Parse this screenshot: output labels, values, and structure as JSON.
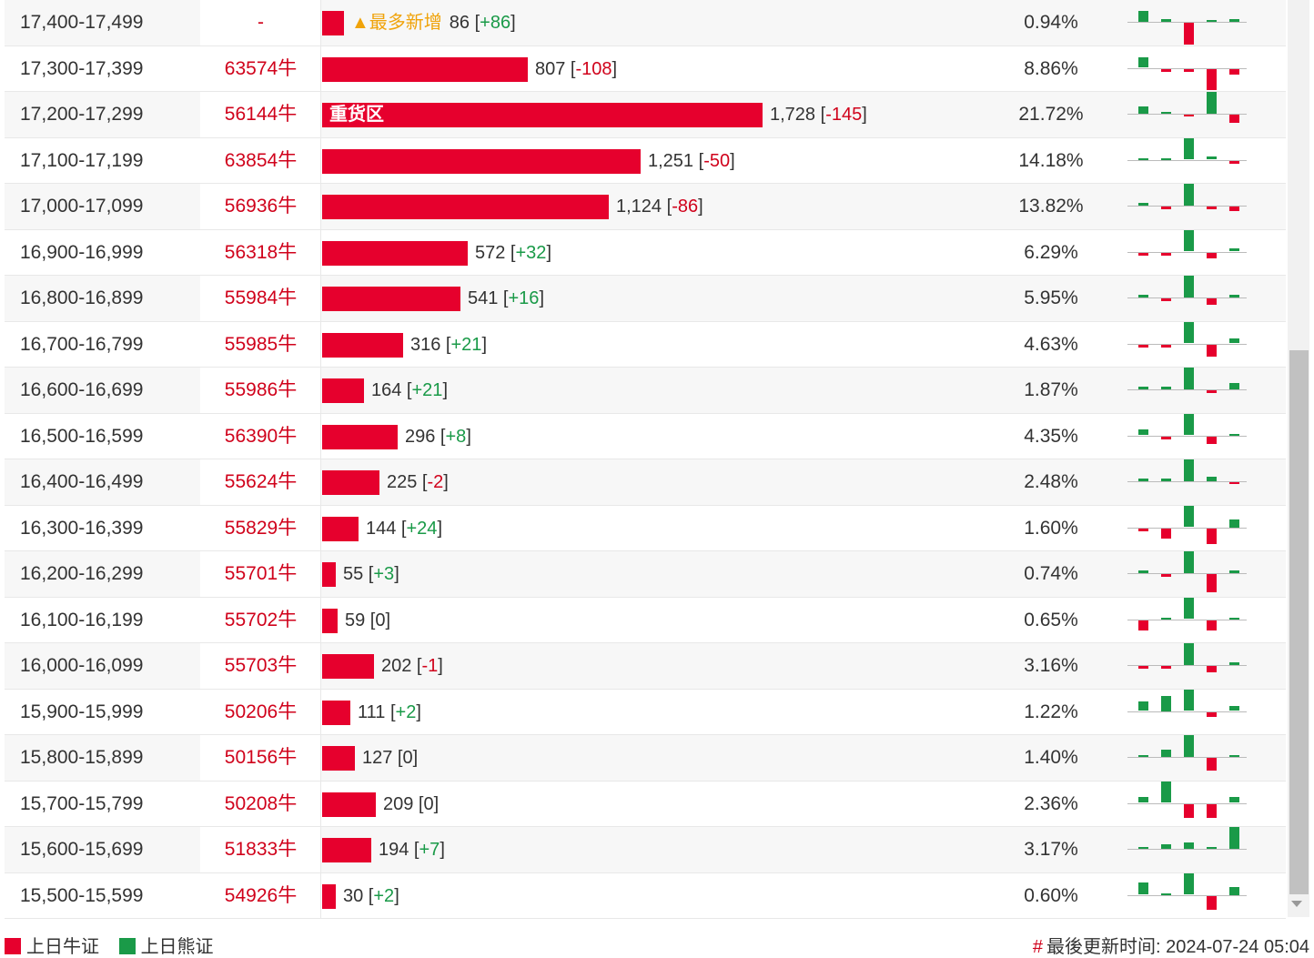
{
  "rows": [
    {
      "range": "17,400-17,499",
      "code": "-",
      "bar": 86,
      "label": "",
      "tag": "▲最多新增",
      "count": "86",
      "delta": "+86",
      "pct": "0.94%",
      "spark": [
        7,
        2,
        -14,
        0,
        2
      ]
    },
    {
      "range": "17,300-17,399",
      "code": "63574牛",
      "bar": 807,
      "label": "",
      "tag": "",
      "count": "807",
      "delta": "-108",
      "pct": "8.86%",
      "spark": [
        7,
        -2,
        -2,
        -14,
        -4
      ]
    },
    {
      "range": "17,200-17,299",
      "code": "56144牛",
      "bar": 1728,
      "label": "重货区",
      "tag": "",
      "count": "1,728",
      "delta": "-145",
      "pct": "21.72%",
      "spark": [
        5,
        1,
        -1,
        14,
        -5
      ]
    },
    {
      "range": "17,100-17,199",
      "code": "63854牛",
      "bar": 1251,
      "label": "",
      "tag": "",
      "count": "1,251",
      "delta": "-50",
      "pct": "14.18%",
      "spark": [
        1,
        0,
        14,
        2,
        -2
      ]
    },
    {
      "range": "17,000-17,099",
      "code": "56936牛",
      "bar": 1124,
      "label": "",
      "tag": "",
      "count": "1,124",
      "delta": "-86",
      "pct": "13.82%",
      "spark": [
        2,
        -2,
        14,
        -2,
        -3
      ]
    },
    {
      "range": "16,900-16,999",
      "code": "56318牛",
      "bar": 572,
      "label": "",
      "tag": "",
      "count": "572",
      "delta": "+32",
      "pct": "6.29%",
      "spark": [
        -2,
        -2,
        14,
        -4,
        2
      ]
    },
    {
      "range": "16,800-16,899",
      "code": "55984牛",
      "bar": 541,
      "label": "",
      "tag": "",
      "count": "541",
      "delta": "+16",
      "pct": "5.95%",
      "spark": [
        2,
        -2,
        14,
        -4,
        2
      ]
    },
    {
      "range": "16,700-16,799",
      "code": "55985牛",
      "bar": 316,
      "label": "",
      "tag": "",
      "count": "316",
      "delta": "+21",
      "pct": "4.63%",
      "spark": [
        -2,
        -2,
        14,
        -8,
        3
      ]
    },
    {
      "range": "16,600-16,699",
      "code": "55986牛",
      "bar": 164,
      "label": "",
      "tag": "",
      "count": "164",
      "delta": "+21",
      "pct": "1.87%",
      "spark": [
        2,
        2,
        14,
        -2,
        4
      ]
    },
    {
      "range": "16,500-16,599",
      "code": "56390牛",
      "bar": 296,
      "label": "",
      "tag": "",
      "count": "296",
      "delta": "+8",
      "pct": "4.35%",
      "spark": [
        4,
        -2,
        14,
        -5,
        1
      ]
    },
    {
      "range": "16,400-16,499",
      "code": "55624牛",
      "bar": 225,
      "label": "",
      "tag": "",
      "count": "225",
      "delta": "-2",
      "pct": "2.48%",
      "spark": [
        2,
        2,
        14,
        3,
        -1
      ]
    },
    {
      "range": "16,300-16,399",
      "code": "55829牛",
      "bar": 144,
      "label": "",
      "tag": "",
      "count": "144",
      "delta": "+24",
      "pct": "1.60%",
      "spark": [
        -2,
        -7,
        14,
        -10,
        5
      ]
    },
    {
      "range": "16,200-16,299",
      "code": "55701牛",
      "bar": 55,
      "label": "",
      "tag": "",
      "count": "55",
      "delta": "+3",
      "pct": "0.74%",
      "spark": [
        2,
        -2,
        14,
        -12,
        2
      ]
    },
    {
      "range": "16,100-16,199",
      "code": "55702牛",
      "bar": 59,
      "label": "",
      "tag": "",
      "count": "59",
      "delta": "0",
      "pct": "0.65%",
      "spark": [
        -7,
        0,
        14,
        -7,
        0
      ]
    },
    {
      "range": "16,000-16,099",
      "code": "55703牛",
      "bar": 202,
      "label": "",
      "tag": "",
      "count": "202",
      "delta": "-1",
      "pct": "3.16%",
      "spark": [
        -2,
        -2,
        14,
        -4,
        2
      ]
    },
    {
      "range": "15,900-15,999",
      "code": "50206牛",
      "bar": 111,
      "label": "",
      "tag": "",
      "count": "111",
      "delta": "+2",
      "pct": "1.22%",
      "spark": [
        6,
        10,
        14,
        -3,
        3
      ]
    },
    {
      "range": "15,800-15,899",
      "code": "50156牛",
      "bar": 127,
      "label": "",
      "tag": "",
      "count": "127",
      "delta": "0",
      "pct": "1.40%",
      "spark": [
        0,
        5,
        14,
        -8,
        0
      ]
    },
    {
      "range": "15,700-15,799",
      "code": "50208牛",
      "bar": 209,
      "label": "",
      "tag": "",
      "count": "209",
      "delta": "0",
      "pct": "2.36%",
      "spark": [
        4,
        14,
        -9,
        -9,
        4
      ]
    },
    {
      "range": "15,600-15,699",
      "code": "51833牛",
      "bar": 194,
      "label": "",
      "tag": "",
      "count": "194",
      "delta": "+7",
      "pct": "3.17%",
      "spark": [
        0,
        3,
        4,
        0,
        14
      ]
    },
    {
      "range": "15,500-15,599",
      "code": "54926牛",
      "bar": 30,
      "label": "",
      "tag": "",
      "count": "30",
      "delta": "+2",
      "pct": "0.60%",
      "spark": [
        8,
        0,
        14,
        -9,
        5
      ]
    }
  ],
  "bar_max": 1728,
  "legend": {
    "bull": "上日牛证",
    "bear": "上日熊证"
  },
  "updated": {
    "hash": "#",
    "text": "最後更新时间: 2024-07-24 05:04"
  },
  "colors": {
    "bull": "#e6002d",
    "bear": "#1a9a48",
    "tag": "#f0a30a"
  }
}
